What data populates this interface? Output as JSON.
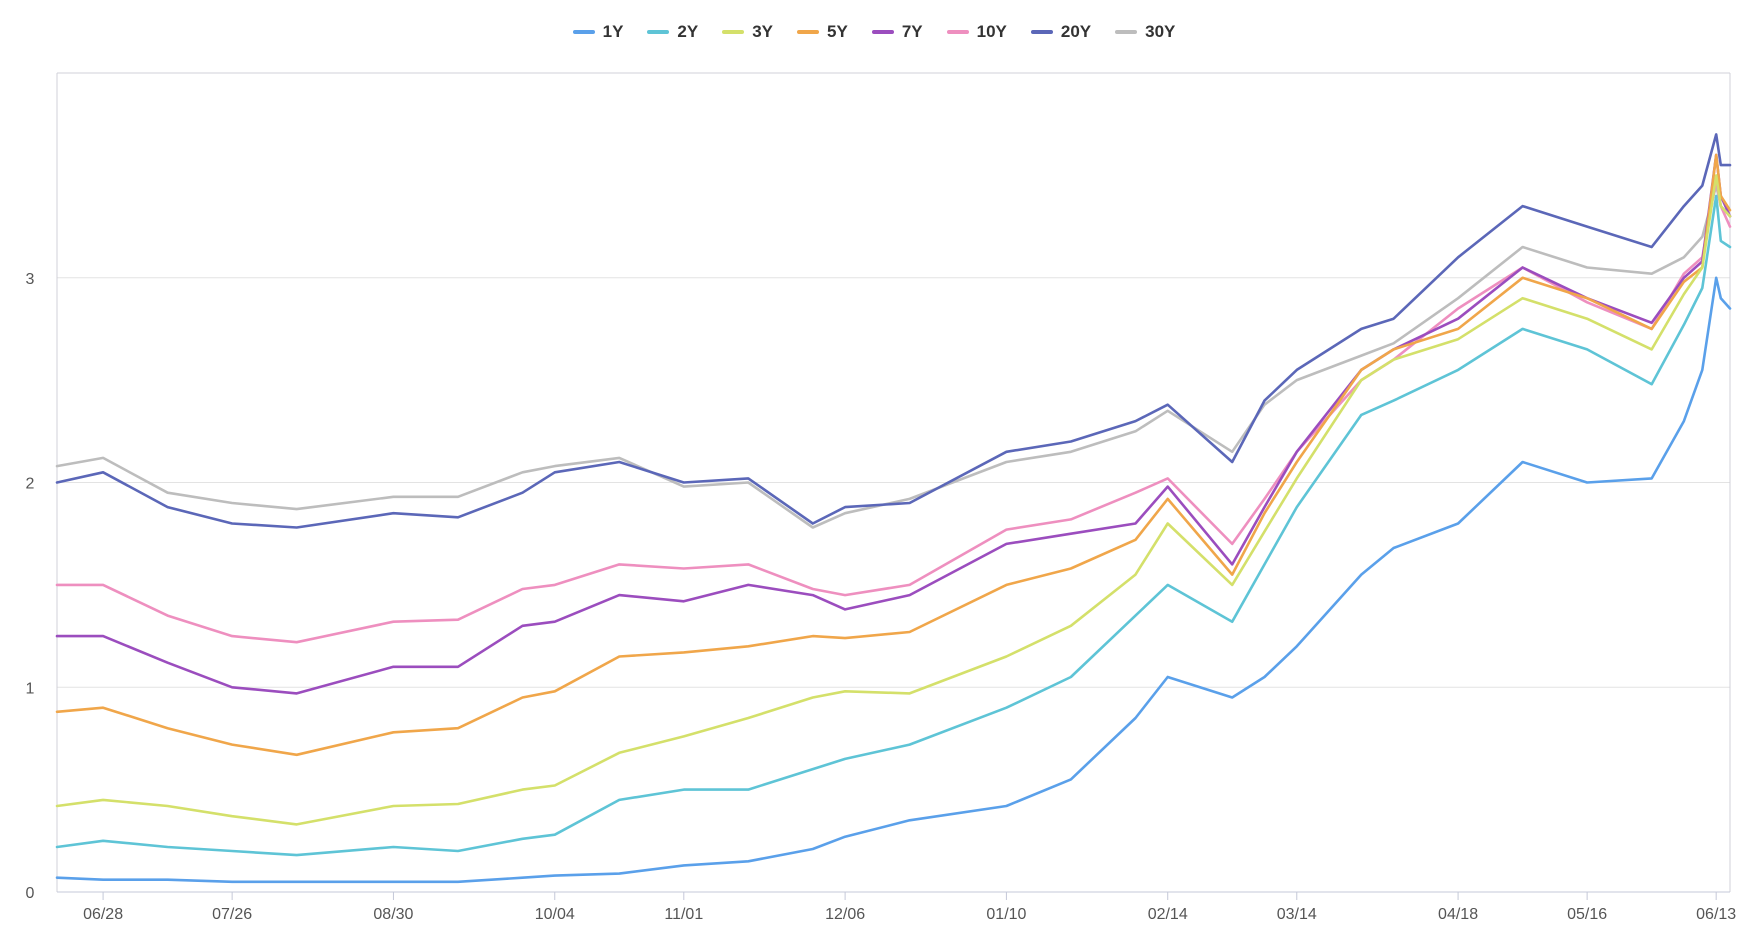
{
  "legend": [
    {
      "label": "1Y",
      "color": "#5aa0ea"
    },
    {
      "label": "2Y",
      "color": "#5ec4d6"
    },
    {
      "label": "3Y",
      "color": "#d4e06a"
    },
    {
      "label": "5Y",
      "color": "#f0a64a"
    },
    {
      "label": "7Y",
      "color": "#9b4dbe"
    },
    {
      "label": "10Y",
      "color": "#ee8fbf"
    },
    {
      "label": "20Y",
      "color": "#5b67b8"
    },
    {
      "label": "30Y",
      "color": "#bdbdbd"
    }
  ],
  "chart_data": {
    "type": "line",
    "title": "",
    "xlabel": "",
    "ylabel": "",
    "xlim": [
      "2021-06-18",
      "2022-06-16"
    ],
    "ylim": [
      0,
      4
    ],
    "yticks": [
      0,
      1,
      2,
      3
    ],
    "xticks": [
      {
        "label": "06/28",
        "date": "2021-06-28"
      },
      {
        "label": "07/26",
        "date": "2021-07-26"
      },
      {
        "label": "08/30",
        "date": "2021-08-30"
      },
      {
        "label": "10/04",
        "date": "2021-10-04"
      },
      {
        "label": "11/01",
        "date": "2021-11-01"
      },
      {
        "label": "12/06",
        "date": "2021-12-06"
      },
      {
        "label": "01/10",
        "date": "2022-01-10"
      },
      {
        "label": "02/14",
        "date": "2022-02-14"
      },
      {
        "label": "03/14",
        "date": "2022-03-14"
      },
      {
        "label": "04/18",
        "date": "2022-04-18"
      },
      {
        "label": "05/16",
        "date": "2022-05-16"
      },
      {
        "label": "06/13",
        "date": "2022-06-13"
      }
    ],
    "grid": true,
    "legend_position": "top-center",
    "dates": [
      "2021-06-18",
      "2021-06-28",
      "2021-07-12",
      "2021-07-26",
      "2021-08-09",
      "2021-08-30",
      "2021-09-13",
      "2021-09-27",
      "2021-10-04",
      "2021-10-18",
      "2021-11-01",
      "2021-11-15",
      "2021-11-29",
      "2021-12-06",
      "2021-12-20",
      "2022-01-10",
      "2022-01-24",
      "2022-02-07",
      "2022-02-14",
      "2022-02-28",
      "2022-03-07",
      "2022-03-14",
      "2022-03-28",
      "2022-04-04",
      "2022-04-18",
      "2022-05-02",
      "2022-05-16",
      "2022-05-30",
      "2022-06-06",
      "2022-06-10",
      "2022-06-13",
      "2022-06-14",
      "2022-06-16"
    ],
    "series": [
      {
        "name": "1Y",
        "values": [
          0.07,
          0.06,
          0.06,
          0.05,
          0.05,
          0.05,
          0.05,
          0.07,
          0.08,
          0.09,
          0.13,
          0.15,
          0.21,
          0.27,
          0.35,
          0.42,
          0.55,
          0.85,
          1.05,
          0.95,
          1.05,
          1.2,
          1.55,
          1.68,
          1.8,
          2.1,
          2.0,
          2.02,
          2.3,
          2.55,
          3.0,
          2.9,
          2.85
        ]
      },
      {
        "name": "2Y",
        "values": [
          0.22,
          0.25,
          0.22,
          0.2,
          0.18,
          0.22,
          0.2,
          0.26,
          0.28,
          0.45,
          0.5,
          0.5,
          0.6,
          0.65,
          0.72,
          0.9,
          1.05,
          1.35,
          1.5,
          1.32,
          1.6,
          1.88,
          2.33,
          2.4,
          2.55,
          2.75,
          2.65,
          2.48,
          2.77,
          2.95,
          3.4,
          3.18,
          3.15
        ]
      },
      {
        "name": "3Y",
        "values": [
          0.42,
          0.45,
          0.42,
          0.37,
          0.33,
          0.42,
          0.43,
          0.5,
          0.52,
          0.68,
          0.76,
          0.85,
          0.95,
          0.98,
          0.97,
          1.15,
          1.3,
          1.55,
          1.8,
          1.5,
          1.76,
          2.02,
          2.5,
          2.6,
          2.7,
          2.9,
          2.8,
          2.65,
          2.92,
          3.05,
          3.5,
          3.35,
          3.3
        ]
      },
      {
        "name": "5Y",
        "values": [
          0.88,
          0.9,
          0.8,
          0.72,
          0.67,
          0.78,
          0.8,
          0.95,
          0.98,
          1.15,
          1.17,
          1.2,
          1.25,
          1.24,
          1.27,
          1.5,
          1.58,
          1.72,
          1.92,
          1.55,
          1.85,
          2.1,
          2.55,
          2.65,
          2.75,
          3.0,
          2.9,
          2.75,
          2.98,
          3.05,
          3.6,
          3.4,
          3.33
        ]
      },
      {
        "name": "7Y",
        "values": [
          1.25,
          1.25,
          1.12,
          1.0,
          0.97,
          1.1,
          1.1,
          1.3,
          1.32,
          1.45,
          1.42,
          1.5,
          1.45,
          1.38,
          1.45,
          1.7,
          1.75,
          1.8,
          1.98,
          1.6,
          1.88,
          2.15,
          2.55,
          2.65,
          2.8,
          3.05,
          2.9,
          2.78,
          3.0,
          3.08,
          3.6,
          3.4,
          3.3
        ]
      },
      {
        "name": "10Y",
        "values": [
          1.5,
          1.5,
          1.35,
          1.25,
          1.22,
          1.32,
          1.33,
          1.48,
          1.5,
          1.6,
          1.58,
          1.6,
          1.48,
          1.45,
          1.5,
          1.77,
          1.82,
          1.95,
          2.02,
          1.7,
          1.92,
          2.15,
          2.5,
          2.6,
          2.85,
          3.05,
          2.88,
          2.75,
          3.02,
          3.1,
          3.48,
          3.35,
          3.25
        ]
      },
      {
        "name": "20Y",
        "values": [
          2.0,
          2.05,
          1.88,
          1.8,
          1.78,
          1.85,
          1.83,
          1.95,
          2.05,
          2.1,
          2.0,
          2.02,
          1.8,
          1.88,
          1.9,
          2.15,
          2.2,
          2.3,
          2.38,
          2.1,
          2.4,
          2.55,
          2.75,
          2.8,
          3.1,
          3.35,
          3.25,
          3.15,
          3.35,
          3.45,
          3.7,
          3.55,
          3.55
        ]
      },
      {
        "name": "30Y",
        "values": [
          2.08,
          2.12,
          1.95,
          1.9,
          1.87,
          1.93,
          1.93,
          2.05,
          2.08,
          2.12,
          1.98,
          2.0,
          1.78,
          1.85,
          1.92,
          2.1,
          2.15,
          2.25,
          2.35,
          2.15,
          2.38,
          2.5,
          2.62,
          2.68,
          2.9,
          3.15,
          3.05,
          3.02,
          3.1,
          3.2,
          3.45,
          3.35,
          3.3
        ]
      }
    ]
  }
}
